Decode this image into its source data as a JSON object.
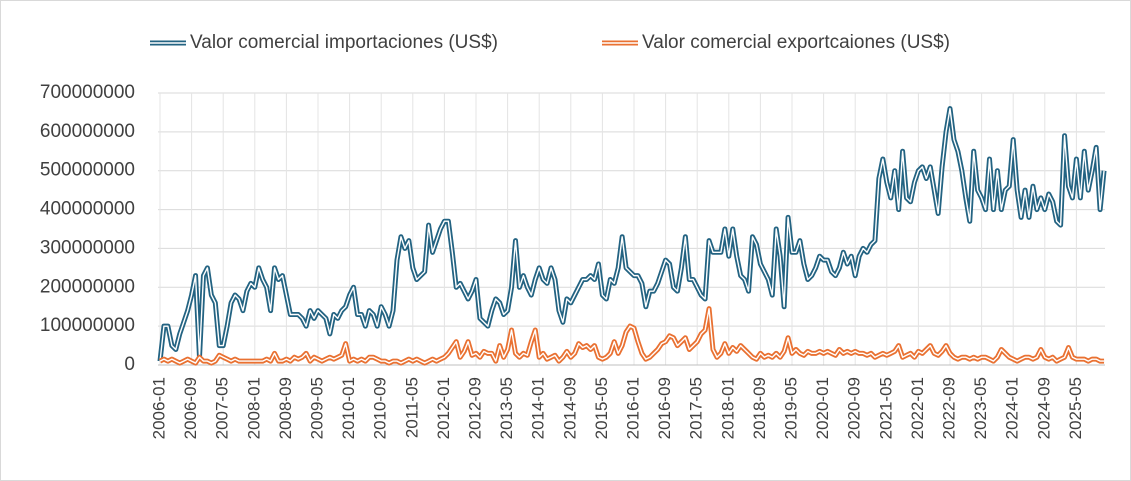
{
  "chart_data": {
    "type": "line",
    "categories": [
      "2006-01",
      null,
      null,
      null,
      null,
      null,
      null,
      null,
      "2006-09",
      null,
      null,
      null,
      null,
      null,
      null,
      null,
      "2007-05",
      null,
      null,
      null,
      null,
      null,
      null,
      null,
      "2008-01",
      null,
      null,
      null,
      null,
      null,
      null,
      null,
      "2008-09",
      null,
      null,
      null,
      null,
      null,
      null,
      null,
      "2009-05",
      null,
      null,
      null,
      null,
      null,
      null,
      null,
      "2010-01",
      null,
      null,
      null,
      null,
      null,
      null,
      null,
      "2010-09",
      null,
      null,
      null,
      null,
      null,
      null,
      null,
      "2011-05",
      null,
      null,
      null,
      null,
      null,
      null,
      null,
      "2012-01",
      null,
      null,
      null,
      null,
      null,
      null,
      null,
      "2012-09",
      null,
      null,
      null,
      null,
      null,
      null,
      null,
      "2013-05",
      null,
      null,
      null,
      null,
      null,
      null,
      null,
      "2014-01",
      null,
      null,
      null,
      null,
      null,
      null,
      null,
      "2014-09",
      null,
      null,
      null,
      null,
      null,
      null,
      null,
      "2015-05",
      null,
      null,
      null,
      null,
      null,
      null,
      null,
      "2016-01",
      null,
      null,
      null,
      null,
      null,
      null,
      null,
      "2016-09",
      null,
      null,
      null,
      null,
      null,
      null,
      null,
      "2017-05",
      null,
      null,
      null,
      null,
      null,
      null,
      null,
      "2018-01",
      null,
      null,
      null,
      null,
      null,
      null,
      null,
      "2018-09",
      null,
      null,
      null,
      null,
      null,
      null,
      null,
      "2019-05",
      null,
      null,
      null,
      null,
      null,
      null,
      null,
      "2020-01",
      null,
      null,
      null,
      null,
      null,
      null,
      null,
      "2020-09",
      null,
      null,
      null,
      null,
      null,
      null,
      null,
      "2021-05",
      null,
      null,
      null,
      null,
      null,
      null,
      null,
      "2022-01",
      null,
      null,
      null,
      null,
      null,
      null,
      null,
      "2022-09",
      null,
      null,
      null,
      null,
      null,
      null,
      null,
      "2023-05",
      null,
      null,
      null,
      null,
      null,
      null,
      null,
      "2024-01",
      null,
      null,
      null,
      null,
      null,
      null,
      null,
      "2024-09",
      null,
      null,
      null,
      null,
      null,
      null,
      null,
      "2025-05",
      null,
      null,
      null,
      null,
      null,
      null,
      null
    ],
    "series": [
      {
        "name": "Valor comercial importaciones (US$)",
        "color": "#236382",
        "values": [
          10000000.0,
          100000000.0,
          100000000.0,
          50000000.0,
          40000000.0,
          80000000.0,
          110000000.0,
          140000000.0,
          180000000.0,
          230000000.0,
          20000000.0,
          230000000.0,
          250000000.0,
          180000000.0,
          160000000.0,
          50000000.0,
          50000000.0,
          100000000.0,
          160000000.0,
          180000000.0,
          170000000.0,
          140000000.0,
          190000000.0,
          210000000.0,
          200000000.0,
          250000000.0,
          220000000.0,
          200000000.0,
          140000000.0,
          250000000.0,
          220000000.0,
          230000000.0,
          180000000.0,
          130000000.0,
          130000000.0,
          130000000.0,
          120000000.0,
          100000000.0,
          140000000.0,
          120000000.0,
          140000000.0,
          130000000.0,
          120000000.0,
          80000000.0,
          130000000.0,
          120000000.0,
          140000000.0,
          150000000.0,
          180000000.0,
          200000000.0,
          130000000.0,
          130000000.0,
          100000000.0,
          140000000.0,
          130000000.0,
          100000000.0,
          150000000.0,
          130000000.0,
          100000000.0,
          140000000.0,
          270000000.0,
          330000000.0,
          300000000.0,
          320000000.0,
          250000000.0,
          220000000.0,
          230000000.0,
          240000000.0,
          360000000.0,
          290000000.0,
          320000000.0,
          350000000.0,
          370000000.0,
          370000000.0,
          290000000.0,
          200000000.0,
          210000000.0,
          190000000.0,
          170000000.0,
          190000000.0,
          220000000.0,
          120000000.0,
          110000000.0,
          100000000.0,
          140000000.0,
          170000000.0,
          160000000.0,
          130000000.0,
          140000000.0,
          200000000.0,
          320000000.0,
          200000000.0,
          230000000.0,
          200000000.0,
          180000000.0,
          220000000.0,
          250000000.0,
          220000000.0,
          210000000.0,
          250000000.0,
          220000000.0,
          140000000.0,
          110000000.0,
          170000000.0,
          160000000.0,
          180000000.0,
          200000000.0,
          220000000.0,
          220000000.0,
          230000000.0,
          220000000.0,
          260000000.0,
          180000000.0,
          170000000.0,
          220000000.0,
          210000000.0,
          250000000.0,
          330000000.0,
          250000000.0,
          240000000.0,
          230000000.0,
          230000000.0,
          210000000.0,
          150000000.0,
          190000000.0,
          190000000.0,
          210000000.0,
          240000000.0,
          270000000.0,
          260000000.0,
          200000000.0,
          190000000.0,
          250000000.0,
          330000000.0,
          220000000.0,
          220000000.0,
          200000000.0,
          180000000.0,
          170000000.0,
          320000000.0,
          290000000.0,
          290000000.0,
          290000000.0,
          350000000.0,
          280000000.0,
          350000000.0,
          280000000.0,
          230000000.0,
          220000000.0,
          190000000.0,
          330000000.0,
          310000000.0,
          260000000.0,
          240000000.0,
          220000000.0,
          180000000.0,
          350000000.0,
          280000000.0,
          150000000.0,
          380000000.0,
          290000000.0,
          290000000.0,
          320000000.0,
          260000000.0,
          220000000.0,
          230000000.0,
          250000000.0,
          280000000.0,
          270000000.0,
          270000000.0,
          240000000.0,
          230000000.0,
          250000000.0,
          290000000.0,
          260000000.0,
          280000000.0,
          230000000.0,
          280000000.0,
          300000000.0,
          290000000.0,
          310000000.0,
          320000000.0,
          480000000.0,
          530000000.0,
          470000000.0,
          430000000.0,
          500000000.0,
          400000000.0,
          550000000.0,
          430000000.0,
          420000000.0,
          470000000.0,
          500000000.0,
          510000000.0,
          480000000.0,
          510000000.0,
          450000000.0,
          390000000.0,
          510000000.0,
          600000000.0,
          660000000.0,
          580000000.0,
          550000000.0,
          500000000.0,
          430000000.0,
          370000000.0,
          550000000.0,
          450000000.0,
          430000000.0,
          400000000.0,
          530000000.0,
          400000000.0,
          500000000.0,
          400000000.0,
          450000000.0,
          460000000.0,
          580000000.0,
          450000000.0,
          380000000.0,
          450000000.0,
          380000000.0,
          460000000.0,
          400000000.0,
          430000000.0,
          400000000.0,
          440000000.0,
          420000000.0,
          370000000.0,
          360000000.0,
          590000000.0,
          460000000.0,
          430000000.0,
          530000000.0,
          430000000.0,
          550000000.0,
          450000000.0,
          500000000.0,
          560000000.0,
          400000000.0,
          500000000.0
        ]
      },
      {
        "name": "Valor comercial exportcaiones (US$)",
        "color": "#e97132",
        "values": [
          10000000.0,
          15000000.0,
          10000000.0,
          15000000.0,
          10000000.0,
          5000000.0,
          10000000.0,
          15000000.0,
          10000000.0,
          5000000.0,
          20000000.0,
          10000000.0,
          10000000.0,
          5000000.0,
          10000000.0,
          25000000.0,
          20000000.0,
          15000000.0,
          10000000.0,
          15000000.0,
          10000000.0,
          10000000.0,
          10000000.0,
          10000000.0,
          10000000.0,
          10000000.0,
          10000000.0,
          15000000.0,
          10000000.0,
          30000000.0,
          10000000.0,
          10000000.0,
          15000000.0,
          10000000.0,
          20000000.0,
          15000000.0,
          20000000.0,
          30000000.0,
          10000000.0,
          20000000.0,
          15000000.0,
          10000000.0,
          15000000.0,
          20000000.0,
          15000000.0,
          20000000.0,
          25000000.0,
          55000000.0,
          10000000.0,
          15000000.0,
          10000000.0,
          15000000.0,
          10000000.0,
          20000000.0,
          20000000.0,
          15000000.0,
          10000000.0,
          10000000.0,
          5000000.0,
          10000000.0,
          10000000.0,
          5000000.0,
          10000000.0,
          15000000.0,
          10000000.0,
          15000000.0,
          10000000.0,
          5000000.0,
          10000000.0,
          15000000.0,
          10000000.0,
          15000000.0,
          20000000.0,
          30000000.0,
          45000000.0,
          60000000.0,
          20000000.0,
          35000000.0,
          60000000.0,
          25000000.0,
          30000000.0,
          20000000.0,
          35000000.0,
          30000000.0,
          30000000.0,
          10000000.0,
          50000000.0,
          20000000.0,
          40000000.0,
          90000000.0,
          30000000.0,
          20000000.0,
          30000000.0,
          25000000.0,
          60000000.0,
          90000000.0,
          20000000.0,
          30000000.0,
          15000000.0,
          20000000.0,
          25000000.0,
          10000000.0,
          20000000.0,
          35000000.0,
          20000000.0,
          30000000.0,
          55000000.0,
          45000000.0,
          50000000.0,
          40000000.0,
          50000000.0,
          20000000.0,
          15000000.0,
          20000000.0,
          30000000.0,
          60000000.0,
          30000000.0,
          50000000.0,
          85000000.0,
          100000000.0,
          95000000.0,
          60000000.0,
          30000000.0,
          15000000.0,
          20000000.0,
          30000000.0,
          40000000.0,
          55000000.0,
          60000000.0,
          75000000.0,
          70000000.0,
          50000000.0,
          60000000.0,
          70000000.0,
          40000000.0,
          50000000.0,
          60000000.0,
          80000000.0,
          90000000.0,
          145000000.0,
          40000000.0,
          20000000.0,
          30000000.0,
          55000000.0,
          30000000.0,
          45000000.0,
          35000000.0,
          50000000.0,
          40000000.0,
          30000000.0,
          20000000.0,
          15000000.0,
          30000000.0,
          20000000.0,
          25000000.0,
          20000000.0,
          30000000.0,
          20000000.0,
          35000000.0,
          70000000.0,
          30000000.0,
          40000000.0,
          30000000.0,
          25000000.0,
          35000000.0,
          30000000.0,
          30000000.0,
          35000000.0,
          30000000.0,
          35000000.0,
          30000000.0,
          25000000.0,
          40000000.0,
          30000000.0,
          35000000.0,
          30000000.0,
          35000000.0,
          30000000.0,
          30000000.0,
          25000000.0,
          30000000.0,
          20000000.0,
          25000000.0,
          30000000.0,
          25000000.0,
          30000000.0,
          35000000.0,
          50000000.0,
          20000000.0,
          25000000.0,
          30000000.0,
          20000000.0,
          35000000.0,
          30000000.0,
          40000000.0,
          50000000.0,
          30000000.0,
          25000000.0,
          35000000.0,
          50000000.0,
          30000000.0,
          20000000.0,
          15000000.0,
          20000000.0,
          20000000.0,
          15000000.0,
          20000000.0,
          15000000.0,
          20000000.0,
          20000000.0,
          15000000.0,
          10000000.0,
          20000000.0,
          40000000.0,
          30000000.0,
          20000000.0,
          15000000.0,
          10000000.0,
          15000000.0,
          20000000.0,
          20000000.0,
          15000000.0,
          20000000.0,
          40000000.0,
          20000000.0,
          15000000.0,
          20000000.0,
          10000000.0,
          15000000.0,
          20000000.0,
          45000000.0,
          20000000.0,
          15000000.0,
          15000000.0,
          15000000.0,
          10000000.0,
          15000000.0,
          15000000.0,
          10000000.0,
          10000000.0
        ]
      }
    ],
    "ylim": [
      0,
      700000000
    ],
    "yticks": [
      0,
      100000000,
      200000000,
      300000000,
      400000000,
      500000000,
      600000000,
      700000000
    ],
    "grid": true,
    "legend": "top"
  }
}
